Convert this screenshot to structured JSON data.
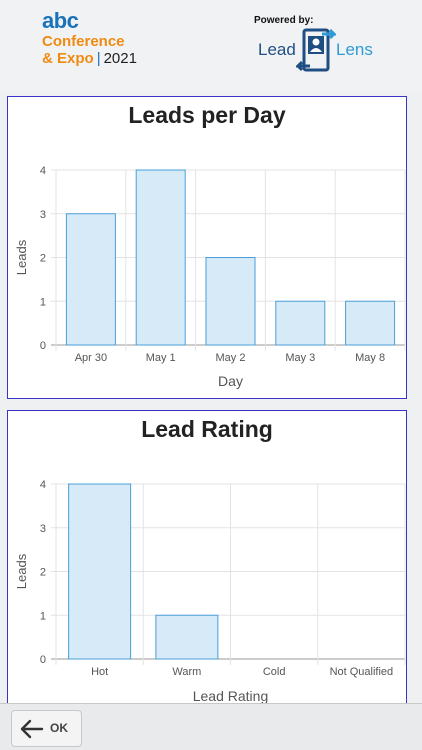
{
  "header": {
    "logo": {
      "abc": "abc",
      "line1": "Conference",
      "line2": "& Expo",
      "separator": "|",
      "year": "2021"
    },
    "powered_by": "Powered by:",
    "brand": {
      "lead": "Lead",
      "lens": "Lens"
    }
  },
  "charts": {
    "per_day": {
      "title": "Leads per Day"
    },
    "rating": {
      "title": "Lead Rating"
    }
  },
  "footer": {
    "ok_label": "OK",
    "back_icon": "arrow-left-icon"
  },
  "colors": {
    "bar_fill": "#d6eaf8",
    "bar_stroke": "#4a9fd8",
    "card_border": "#3a33c8",
    "logo_blue": "#1a73b8",
    "logo_orange": "#f08a12"
  },
  "chart_data": [
    {
      "type": "bar",
      "title": "Leads per Day",
      "categories": [
        "Apr 30",
        "May 1",
        "May 2",
        "May 3",
        "May 8"
      ],
      "values": [
        3,
        4,
        2,
        1,
        1
      ],
      "xlabel": "Day",
      "ylabel": "Leads",
      "ylim": [
        0,
        4
      ],
      "yticks": [
        "0",
        "1",
        "2",
        "3",
        "4"
      ],
      "grid": true
    },
    {
      "type": "bar",
      "title": "Lead Rating",
      "categories": [
        "Hot",
        "Warm",
        "Cold",
        "Not Qualified"
      ],
      "values": [
        4,
        1,
        0,
        0
      ],
      "xlabel": "Lead Rating",
      "ylabel": "Leads",
      "ylim": [
        0,
        4
      ],
      "yticks": [
        "0",
        "1",
        "2",
        "3",
        "4"
      ],
      "grid": true
    }
  ]
}
